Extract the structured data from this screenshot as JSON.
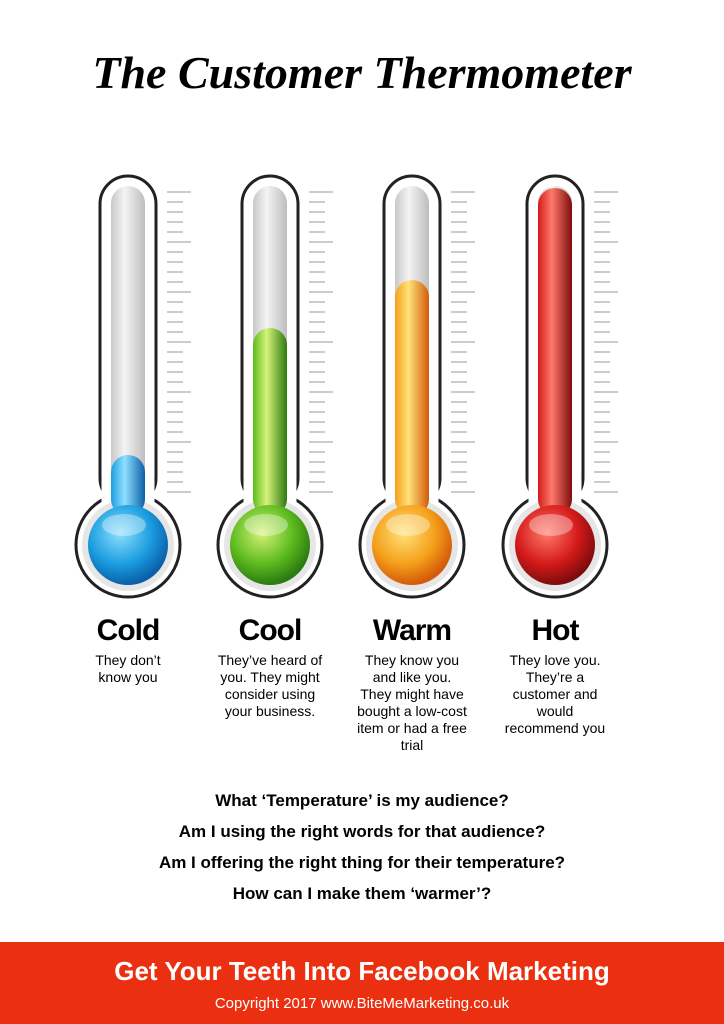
{
  "header": {
    "title": "The Customer Thermometer"
  },
  "thermometers": [
    {
      "label": "Cold",
      "description": [
        "They don’t",
        "know you"
      ]
    },
    {
      "label": "Cool",
      "description": [
        "They’ve heard of",
        "you. They might",
        "consider using",
        "your business."
      ]
    },
    {
      "label": "Warm",
      "description": [
        "They know you",
        "and like you.",
        "They might have",
        "bought a low-cost",
        "item or had a free",
        "trial"
      ]
    },
    {
      "label": "Hot",
      "description": [
        "They love you.",
        "They’re a",
        "customer and",
        "would",
        "recommend you"
      ]
    }
  ],
  "questions": [
    "What ‘Temperature’ is my audience?",
    "Am I using the right words for that audience?",
    "Am I offering the right thing for their temperature?",
    "How can I make them ‘warmer’?"
  ],
  "footer": {
    "title": "Get Your Teeth Into Facebook Marketing",
    "copyright": "Copyright 2017 www.BiteMeMarketing.co.uk"
  }
}
